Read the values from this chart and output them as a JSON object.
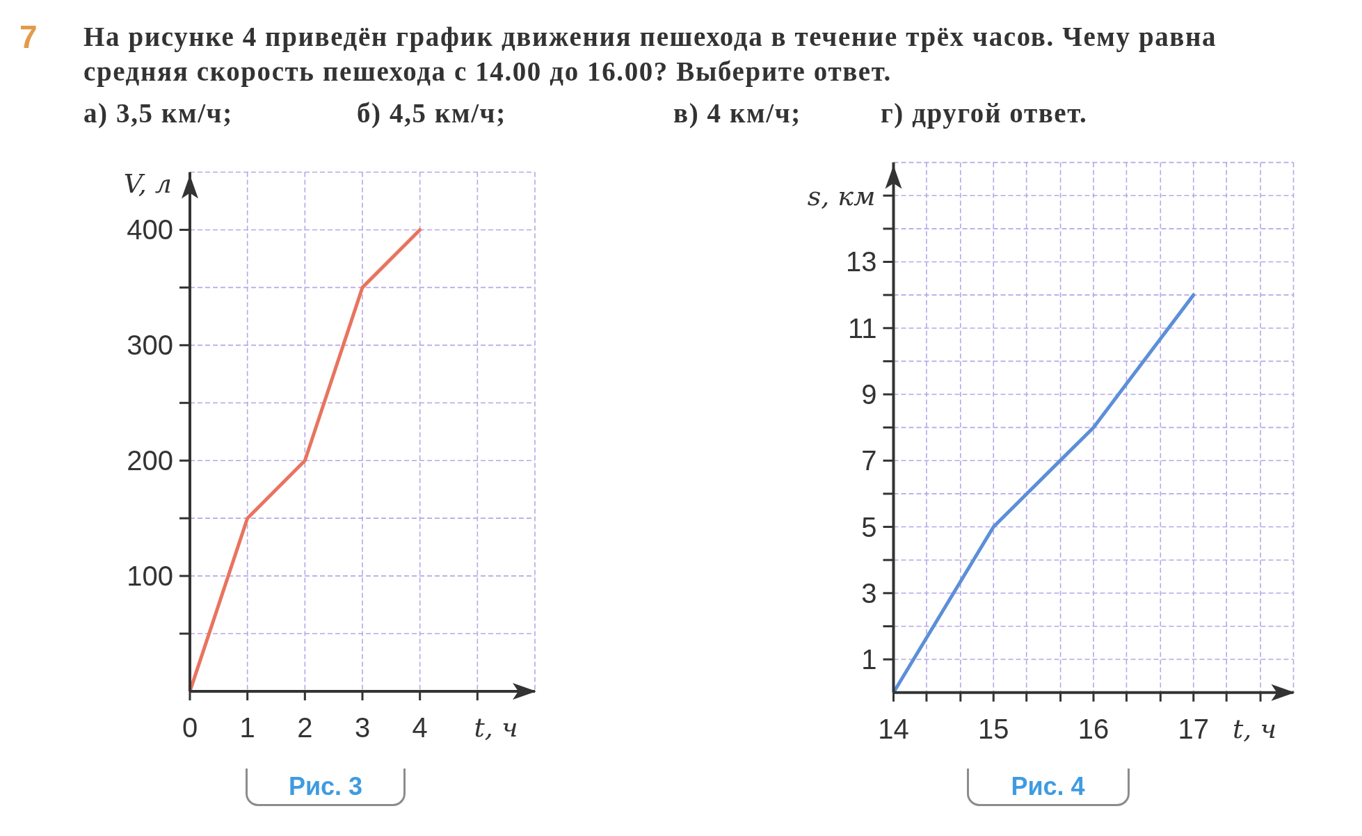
{
  "chart_data": [
    {
      "type": "other",
      "title": "7",
      "subtitle": "На рисунке 4 приведён график движения пешехода в течение трёх часов. Чему равна средняя скорость пешехода с 14.00 до 16.00? Выберите ответ.",
      "annotations": [
        "а) 3,5 км/ч;",
        "б) 4,5 км/ч;",
        "в) 4 км/ч;",
        "г) другой ответ."
      ]
    },
    {
      "type": "line",
      "x": [
        0,
        1,
        2,
        3,
        4
      ],
      "values": [
        0,
        150,
        200,
        350,
        400
      ],
      "color": "#e8745f",
      "xlabel": "t, ч",
      "ylabel": "V, л",
      "xlim": [
        0,
        6
      ],
      "ylim": [
        0,
        450
      ],
      "xticks": [
        0,
        1,
        2,
        3,
        4,
        {
          "value": 5,
          "label": null
        }
      ],
      "yticks": [
        {
          "value": 50,
          "label": null
        },
        100,
        {
          "value": 150,
          "label": null
        },
        200,
        {
          "value": 250,
          "label": null
        },
        300,
        {
          "value": 350,
          "label": null
        },
        400
      ],
      "grid": true,
      "annotations": [
        "Рис. 3"
      ]
    },
    {
      "type": "line",
      "x": [
        14,
        15,
        16,
        17
      ],
      "values": [
        0,
        5,
        8,
        12
      ],
      "color": "#5c8fd8",
      "xlabel": "t, ч",
      "ylabel": "s, км",
      "xlim": [
        14,
        18
      ],
      "ylim": [
        0,
        16
      ],
      "xticks": [
        14,
        {
          "value": 14.33,
          "label": null
        },
        {
          "value": 14.67,
          "label": null
        },
        15,
        {
          "value": 15.33,
          "label": null
        },
        {
          "value": 15.67,
          "label": null
        },
        16,
        {
          "value": 16.33,
          "label": null
        },
        {
          "value": 16.67,
          "label": null
        },
        17,
        {
          "value": 17.33,
          "label": null
        },
        {
          "value": 17.67,
          "label": null
        }
      ],
      "yticks": [
        1,
        {
          "value": 2,
          "label": null
        },
        3,
        {
          "value": 4,
          "label": null
        },
        5,
        {
          "value": 6,
          "label": null
        },
        7,
        {
          "value": 8,
          "label": null
        },
        9,
        {
          "value": 10,
          "label": null
        },
        11,
        {
          "value": 12,
          "label": null
        },
        13,
        {
          "value": 14,
          "label": null
        },
        {
          "value": 15,
          "label": null
        }
      ],
      "grid": true,
      "annotations": [
        "Рис. 4"
      ]
    }
  ]
}
